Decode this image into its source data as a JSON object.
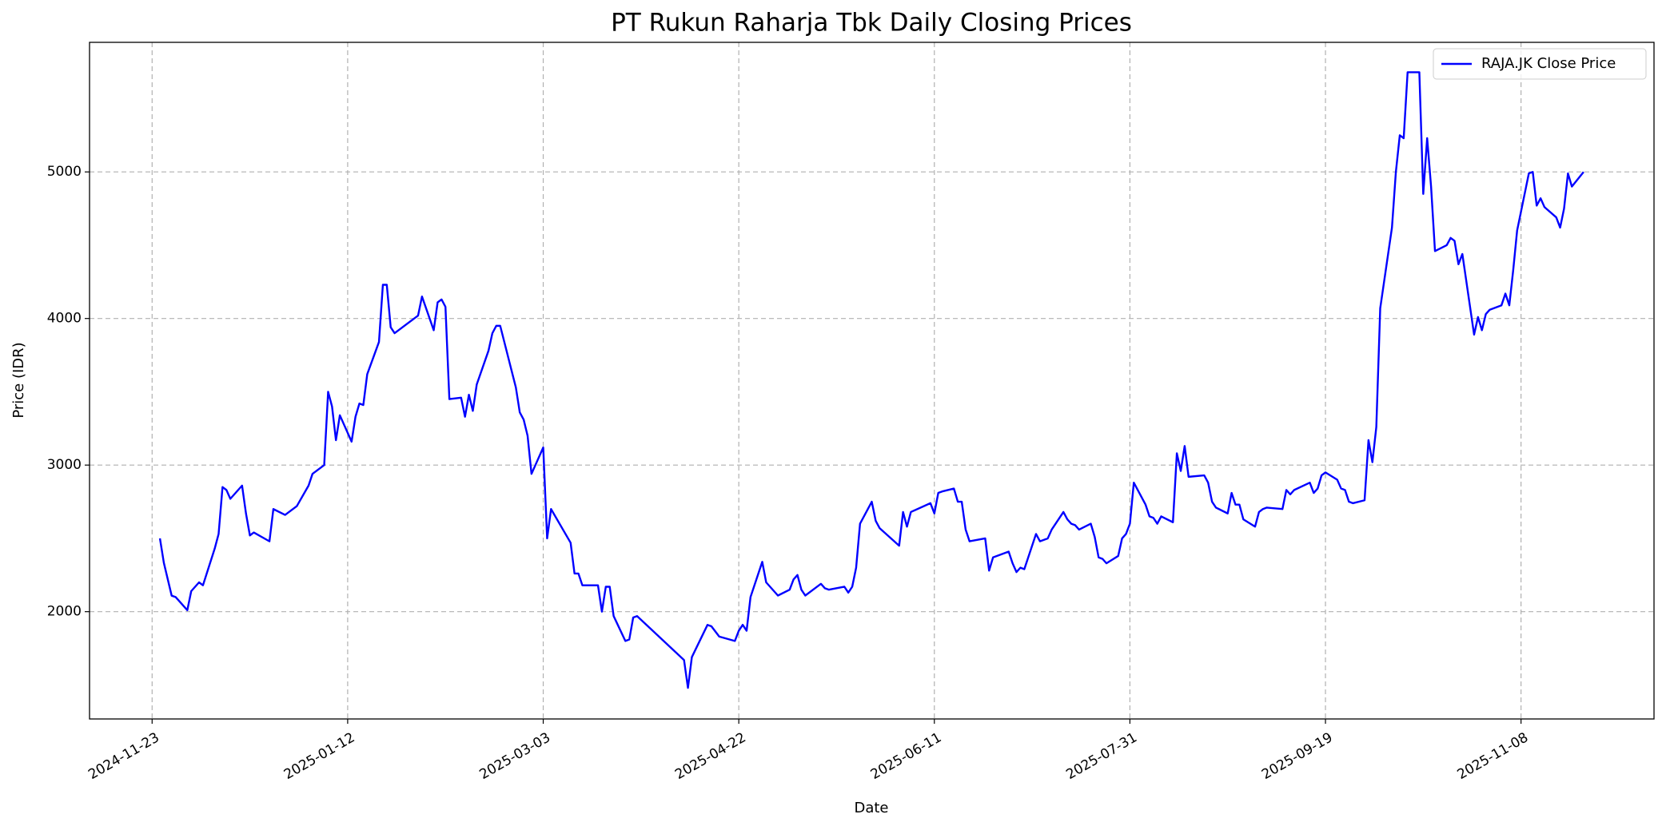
{
  "chart_data": {
    "type": "line",
    "title": "PT Rukun Raharja Tbk Daily Closing Prices",
    "xlabel": "Date",
    "ylabel": "Price (IDR)",
    "x": [
      "2024-11-25",
      "2024-11-26",
      "2024-11-28",
      "2024-11-29",
      "2024-12-02",
      "2024-12-03",
      "2024-12-05",
      "2024-12-06",
      "2024-12-09",
      "2024-12-10",
      "2024-12-11",
      "2024-12-12",
      "2024-12-13",
      "2024-12-16",
      "2024-12-17",
      "2024-12-18",
      "2024-12-19",
      "2024-12-23",
      "2024-12-24",
      "2024-12-27",
      "2024-12-30",
      "2025-01-02",
      "2025-01-03",
      "2025-01-06",
      "2025-01-07",
      "2025-01-08",
      "2025-01-09",
      "2025-01-10",
      "2025-01-13",
      "2025-01-14",
      "2025-01-15",
      "2025-01-16",
      "2025-01-17",
      "2025-01-20",
      "2025-01-21",
      "2025-01-22",
      "2025-01-23",
      "2025-01-24",
      "2025-01-30",
      "2025-01-31",
      "2025-02-03",
      "2025-02-04",
      "2025-02-05",
      "2025-02-06",
      "2025-02-07",
      "2025-02-10",
      "2025-02-11",
      "2025-02-12",
      "2025-02-13",
      "2025-02-14",
      "2025-02-17",
      "2025-02-18",
      "2025-02-19",
      "2025-02-20",
      "2025-02-24",
      "2025-02-25",
      "2025-02-26",
      "2025-02-27",
      "2025-02-28",
      "2025-03-03",
      "2025-03-04",
      "2025-03-05",
      "2025-03-10",
      "2025-03-11",
      "2025-03-12",
      "2025-03-13",
      "2025-03-17",
      "2025-03-18",
      "2025-03-19",
      "2025-03-20",
      "2025-03-21",
      "2025-03-24",
      "2025-03-25",
      "2025-03-26",
      "2025-03-27",
      "2025-04-08",
      "2025-04-09",
      "2025-04-10",
      "2025-04-14",
      "2025-04-15",
      "2025-04-17",
      "2025-04-21",
      "2025-04-22",
      "2025-04-23",
      "2025-04-24",
      "2025-04-25",
      "2025-04-28",
      "2025-04-29",
      "2025-05-02",
      "2025-05-05",
      "2025-05-06",
      "2025-05-07",
      "2025-05-08",
      "2025-05-09",
      "2025-05-13",
      "2025-05-14",
      "2025-05-15",
      "2025-05-19",
      "2025-05-20",
      "2025-05-21",
      "2025-05-22",
      "2025-05-23",
      "2025-05-26",
      "2025-05-27",
      "2025-05-28",
      "2025-06-02",
      "2025-06-03",
      "2025-06-04",
      "2025-06-05",
      "2025-06-10",
      "2025-06-11",
      "2025-06-12",
      "2025-06-13",
      "2025-06-16",
      "2025-06-17",
      "2025-06-18",
      "2025-06-19",
      "2025-06-20",
      "2025-06-24",
      "2025-06-25",
      "2025-06-26",
      "2025-06-30",
      "2025-07-01",
      "2025-07-02",
      "2025-07-03",
      "2025-07-04",
      "2025-07-07",
      "2025-07-08",
      "2025-07-10",
      "2025-07-11",
      "2025-07-14",
      "2025-07-15",
      "2025-07-16",
      "2025-07-17",
      "2025-07-18",
      "2025-07-21",
      "2025-07-22",
      "2025-07-23",
      "2025-07-24",
      "2025-07-25",
      "2025-07-28",
      "2025-07-29",
      "2025-07-30",
      "2025-07-31",
      "2025-08-01",
      "2025-08-04",
      "2025-08-05",
      "2025-08-06",
      "2025-08-07",
      "2025-08-08",
      "2025-08-11",
      "2025-08-12",
      "2025-08-13",
      "2025-08-14",
      "2025-08-15",
      "2025-08-19",
      "2025-08-20",
      "2025-08-21",
      "2025-08-22",
      "2025-08-25",
      "2025-08-26",
      "2025-08-27",
      "2025-08-28",
      "2025-08-29",
      "2025-09-01",
      "2025-09-02",
      "2025-09-03",
      "2025-09-04",
      "2025-09-08",
      "2025-09-09",
      "2025-09-10",
      "2025-09-11",
      "2025-09-15",
      "2025-09-16",
      "2025-09-17",
      "2025-09-18",
      "2025-09-19",
      "2025-09-22",
      "2025-09-23",
      "2025-09-24",
      "2025-09-25",
      "2025-09-26",
      "2025-09-29",
      "2025-09-30",
      "2025-10-01",
      "2025-10-02",
      "2025-10-03",
      "2025-10-06",
      "2025-10-07",
      "2025-10-08",
      "2025-10-09",
      "2025-10-10",
      "2025-10-13",
      "2025-10-14",
      "2025-10-15",
      "2025-10-16",
      "2025-10-17",
      "2025-10-20",
      "2025-10-21",
      "2025-10-22",
      "2025-10-23",
      "2025-10-24",
      "2025-10-27",
      "2025-10-28",
      "2025-10-29",
      "2025-10-30",
      "2025-10-31",
      "2025-11-03",
      "2025-11-04",
      "2025-11-05",
      "2025-11-06",
      "2025-11-07",
      "2025-11-10",
      "2025-11-11",
      "2025-11-12",
      "2025-11-13",
      "2025-11-14",
      "2025-11-17",
      "2025-11-18",
      "2025-11-19",
      "2025-11-20",
      "2025-11-21",
      "2025-11-24"
    ],
    "series": [
      {
        "name": "RAJA.JK Close Price",
        "color": "#0000ff",
        "values": [
          2500,
          2333,
          2109,
          2100,
          2010,
          2140,
          2200,
          2180,
          2430,
          2530,
          2850,
          2830,
          2770,
          2860,
          2670,
          2520,
          2540,
          2480,
          2700,
          2660,
          2720,
          2860,
          2940,
          3000,
          3500,
          3400,
          3170,
          3340,
          3160,
          3330,
          3420,
          3410,
          3620,
          3840,
          4230,
          4230,
          3940,
          3900,
          4020,
          4150,
          3920,
          4110,
          4130,
          4080,
          3450,
          3460,
          3330,
          3480,
          3370,
          3550,
          3780,
          3900,
          3950,
          3950,
          3530,
          3360,
          3310,
          3200,
          2940,
          3120,
          2500,
          2700,
          2470,
          2260,
          2260,
          2180,
          2180,
          2000,
          2170,
          2170,
          1970,
          1800,
          1810,
          1960,
          1970,
          1670,
          1480,
          1690,
          1910,
          1900,
          1830,
          1800,
          1870,
          1910,
          1870,
          2100,
          2340,
          2200,
          2110,
          2150,
          2220,
          2250,
          2150,
          2110,
          2190,
          2160,
          2150,
          2170,
          2130,
          2170,
          2300,
          2600,
          2750,
          2620,
          2570,
          2450,
          2680,
          2580,
          2680,
          2740,
          2670,
          2810,
          2820,
          2840,
          2750,
          2750,
          2560,
          2480,
          2500,
          2280,
          2370,
          2410,
          2330,
          2270,
          2300,
          2290,
          2530,
          2480,
          2500,
          2560,
          2680,
          2630,
          2600,
          2590,
          2560,
          2600,
          2510,
          2370,
          2360,
          2330,
          2380,
          2500,
          2530,
          2600,
          2880,
          2730,
          2650,
          2640,
          2600,
          2650,
          2610,
          3080,
          2960,
          3130,
          2920,
          2930,
          2880,
          2750,
          2710,
          2670,
          2810,
          2730,
          2730,
          2630,
          2580,
          2680,
          2700,
          2710,
          2700,
          2830,
          2800,
          2830,
          2880,
          2810,
          2840,
          2930,
          2950,
          2900,
          2840,
          2830,
          2750,
          2740,
          2760,
          3170,
          3020,
          3260,
          4070,
          4620,
          5000,
          5250,
          5230,
          5680,
          5680,
          4850,
          5230,
          4900,
          4460,
          4500,
          4550,
          4530,
          4370,
          4440,
          3890,
          4010,
          3920,
          4030,
          4060,
          4090,
          4170,
          4090,
          4330,
          4600,
          4990,
          5000,
          4770,
          4820,
          4760,
          4690,
          4620,
          4750,
          4990,
          4900,
          5000
        ]
      }
    ],
    "xlim": [
      "2024-11-07",
      "2025-12-12"
    ],
    "xticks": [
      "2024-11-23",
      "2025-01-12",
      "2025-03-03",
      "2025-04-22",
      "2025-06-11",
      "2025-07-31",
      "2025-09-19",
      "2025-11-08"
    ],
    "ylim": [
      1268,
      5884
    ],
    "yticks": [
      2000,
      3000,
      4000,
      5000
    ],
    "grid": true,
    "legend": "upper right"
  }
}
